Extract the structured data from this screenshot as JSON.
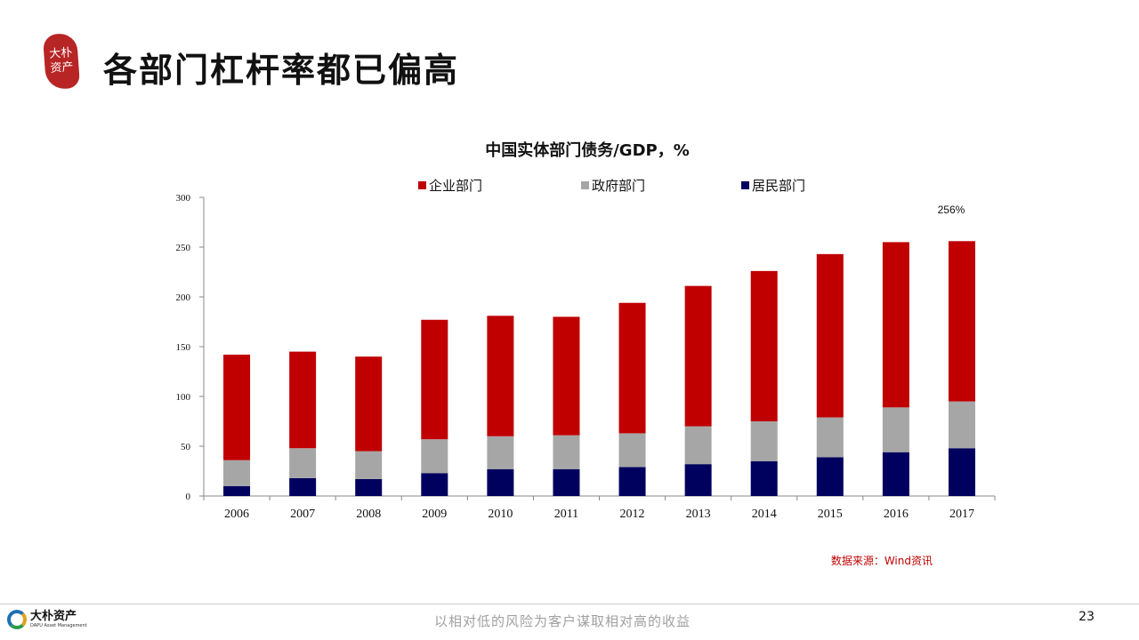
{
  "header": {
    "title": "各部门杠杆率都已偏高",
    "logo_text": [
      "大朴",
      "资产"
    ]
  },
  "chart_data": {
    "type": "bar",
    "stacked": true,
    "title": "中国实体部门债务/GDP，%",
    "categories": [
      "2006",
      "2007",
      "2008",
      "2009",
      "2010",
      "2011",
      "2012",
      "2013",
      "2014",
      "2015",
      "2016",
      "2017"
    ],
    "series": [
      {
        "name": "居民部门",
        "color": "#00005e",
        "values": [
          10,
          18,
          17,
          23,
          27,
          27,
          29,
          32,
          35,
          39,
          44,
          48
        ]
      },
      {
        "name": "政府部门",
        "color": "#a6a6a6",
        "values": [
          26,
          30,
          28,
          34,
          33,
          34,
          34,
          38,
          40,
          40,
          45,
          47
        ]
      },
      {
        "name": "企业部门",
        "color": "#c00000",
        "values": [
          106,
          97,
          95,
          120,
          121,
          119,
          131,
          141,
          151,
          164,
          166,
          161
        ]
      }
    ],
    "legend_order": [
      "企业部门",
      "政府部门",
      "居民部门"
    ],
    "ylim": [
      0,
      300
    ],
    "yticks": [
      0,
      50,
      100,
      150,
      200,
      250,
      300
    ],
    "annotation": {
      "category": "2017",
      "text": "256%"
    },
    "xlabel": "",
    "ylabel": "",
    "grid": false,
    "legend_position": "top"
  },
  "source_note": "数据来源：Wind资讯",
  "footer": {
    "brand_cn": "大朴资产",
    "brand_en": "DAPU Asset Management",
    "slogan": "以相对低的风险为客户谋取相对高的收益",
    "page_number": "23"
  }
}
